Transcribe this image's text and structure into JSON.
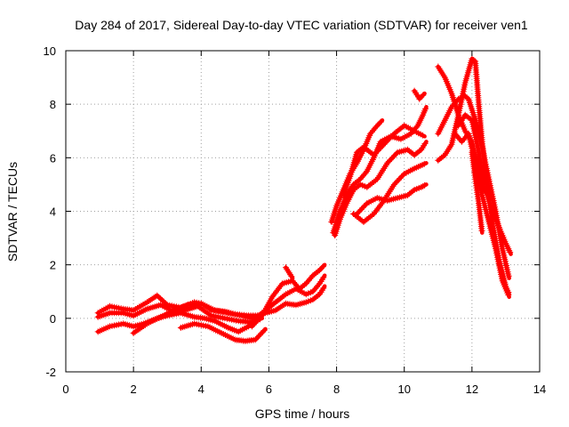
{
  "chart_data": {
    "type": "scatter",
    "title": "Day 284 of 2017, Sidereal Day-to-day VTEC variation (SDTVAR) for receiver ven1",
    "xlabel": "GPS time / hours",
    "ylabel": "SDTVAR / TECUs",
    "xlim": [
      0,
      14
    ],
    "ylim": [
      -2,
      10
    ],
    "xticks": [
      0,
      2,
      4,
      6,
      8,
      10,
      12,
      14
    ],
    "yticks": [
      -2,
      0,
      2,
      4,
      6,
      8,
      10
    ],
    "grid": true,
    "marker": "plus",
    "color": "#ff0000",
    "series": [
      {
        "x": [
          0.95,
          1.3,
          1.7,
          2.0,
          2.4,
          2.7,
          3.0,
          3.4,
          3.8,
          4.0,
          4.4,
          4.8,
          5.2,
          5.5,
          5.8
        ],
        "y": [
          0.2,
          0.45,
          0.35,
          0.3,
          0.6,
          0.85,
          0.5,
          0.4,
          0.6,
          0.55,
          0.3,
          0.2,
          0.1,
          0.0,
          0.1
        ]
      },
      {
        "x": [
          0.95,
          1.3,
          1.7,
          2.0,
          2.4,
          2.8,
          3.1,
          3.5,
          3.9,
          4.3,
          4.7,
          5.1,
          5.5,
          5.8
        ],
        "y": [
          0.05,
          0.2,
          0.2,
          0.1,
          0.35,
          0.5,
          0.3,
          0.3,
          0.45,
          0.1,
          0.0,
          -0.1,
          -0.15,
          0.0
        ]
      },
      {
        "x": [
          0.95,
          1.3,
          1.7,
          2.0,
          2.3,
          2.7,
          3.0,
          3.4,
          3.8,
          4.1,
          4.4,
          4.8,
          5.1,
          5.4,
          5.6
        ],
        "y": [
          -0.5,
          -0.3,
          -0.2,
          -0.3,
          -0.2,
          0.0,
          0.1,
          0.2,
          0.05,
          0.0,
          -0.1,
          -0.35,
          -0.5,
          -0.3,
          -0.1
        ]
      },
      {
        "x": [
          2.0,
          2.4,
          2.8,
          3.2,
          3.6,
          4.0,
          4.3,
          4.7,
          5.0,
          5.4,
          5.8
        ],
        "y": [
          -0.55,
          -0.2,
          0.05,
          0.3,
          0.5,
          0.55,
          0.3,
          0.25,
          0.15,
          0.1,
          0.1
        ]
      },
      {
        "x": [
          3.4,
          3.8,
          4.2,
          4.6,
          5.0,
          5.3,
          5.6,
          5.9
        ],
        "y": [
          -0.35,
          -0.2,
          -0.3,
          -0.55,
          -0.8,
          -0.85,
          -0.8,
          -0.4
        ]
      },
      {
        "x": [
          5.5,
          5.8,
          6.1,
          6.4,
          6.7,
          6.9,
          7.1,
          7.3,
          7.5,
          7.65
        ],
        "y": [
          -0.3,
          0.1,
          0.8,
          1.3,
          1.4,
          1.1,
          1.3,
          1.6,
          1.8,
          2.0
        ]
      },
      {
        "x": [
          5.6,
          5.9,
          6.2,
          6.5,
          6.8,
          7.1,
          7.3,
          7.5,
          7.65
        ],
        "y": [
          0.0,
          0.3,
          0.6,
          0.9,
          1.1,
          0.9,
          1.0,
          1.3,
          1.6
        ]
      },
      {
        "x": [
          5.9,
          6.2,
          6.5,
          6.8,
          7.1,
          7.3,
          7.5,
          7.65
        ],
        "y": [
          0.2,
          0.3,
          0.55,
          0.5,
          0.6,
          0.7,
          0.9,
          1.2
        ]
      },
      {
        "x": [
          6.5,
          6.6,
          6.7
        ],
        "y": [
          1.9,
          1.7,
          1.5
        ]
      },
      {
        "x": [
          7.85,
          8.0,
          8.2,
          8.4,
          8.6,
          8.8,
          9.0,
          9.2,
          9.35
        ],
        "y": [
          3.6,
          4.2,
          4.8,
          5.4,
          5.8,
          6.3,
          6.9,
          7.2,
          7.4
        ]
      },
      {
        "x": [
          7.9,
          8.1,
          8.3,
          8.5,
          8.7,
          8.9,
          9.1,
          9.3,
          9.6,
          9.9,
          10.2,
          10.4,
          10.55,
          10.65
        ],
        "y": [
          3.2,
          4.0,
          4.6,
          5.0,
          5.2,
          5.5,
          6.0,
          6.6,
          6.8,
          6.7,
          6.9,
          7.2,
          7.6,
          7.9
        ]
      },
      {
        "x": [
          7.95,
          8.1,
          8.3,
          8.5,
          8.7,
          8.9,
          9.2,
          9.5,
          9.8,
          10.1,
          10.3,
          10.5,
          10.65
        ],
        "y": [
          3.1,
          3.7,
          4.3,
          4.8,
          5.0,
          4.9,
          5.2,
          5.8,
          6.2,
          6.3,
          6.1,
          6.3,
          6.6
        ]
      },
      {
        "x": [
          8.2,
          8.4,
          8.6,
          8.8,
          9.1,
          9.4,
          9.7,
          10.0,
          10.3,
          10.6
        ],
        "y": [
          4.6,
          5.3,
          6.2,
          6.4,
          6.1,
          6.5,
          6.9,
          7.2,
          7.0,
          6.8
        ]
      },
      {
        "x": [
          8.6,
          8.9,
          9.2,
          9.5,
          9.8,
          10.1,
          10.3,
          10.5,
          10.65
        ],
        "y": [
          3.9,
          4.3,
          4.5,
          4.4,
          4.5,
          4.6,
          4.8,
          4.9,
          5.0
        ]
      },
      {
        "x": [
          8.5,
          8.8,
          9.1,
          9.4,
          9.7,
          10.0,
          10.3,
          10.65
        ],
        "y": [
          3.9,
          3.6,
          3.9,
          4.4,
          5.0,
          5.4,
          5.6,
          5.8
        ]
      },
      {
        "x": [
          10.3,
          10.45,
          10.6
        ],
        "y": [
          8.5,
          8.2,
          8.4
        ]
      },
      {
        "x": [
          11.0,
          11.2,
          11.4,
          11.6,
          11.8,
          12.0,
          12.15,
          12.3,
          12.45,
          12.6,
          12.8,
          13.0,
          13.15
        ],
        "y": [
          9.4,
          9.0,
          8.4,
          7.6,
          7.0,
          6.6,
          5.8,
          5.0,
          4.6,
          4.0,
          3.4,
          2.8,
          2.4
        ]
      },
      {
        "x": [
          11.0,
          11.2,
          11.4,
          11.6,
          11.8,
          11.9,
          12.1,
          12.3,
          12.5,
          12.7,
          12.9,
          13.1
        ],
        "y": [
          6.9,
          7.4,
          7.9,
          8.2,
          8.3,
          8.2,
          7.4,
          6.4,
          5.2,
          4.0,
          2.6,
          1.5
        ]
      },
      {
        "x": [
          11.0,
          11.2,
          11.4,
          11.6,
          11.8,
          12.0,
          12.1,
          12.2,
          12.3,
          12.4,
          12.6,
          12.8,
          13.0,
          13.1
        ],
        "y": [
          5.9,
          6.1,
          6.5,
          7.6,
          8.8,
          9.7,
          9.6,
          8.0,
          6.6,
          5.4,
          3.6,
          2.2,
          1.2,
          0.9
        ]
      },
      {
        "x": [
          11.5,
          11.7,
          11.9,
          12.1,
          12.3,
          12.5,
          12.7,
          12.9,
          13.1
        ],
        "y": [
          6.9,
          6.6,
          6.9,
          5.8,
          4.6,
          3.6,
          2.6,
          1.4,
          0.8
        ]
      },
      {
        "x": [
          11.6,
          11.8,
          12.0,
          12.2,
          12.35
        ],
        "y": [
          7.2,
          7.6,
          7.4,
          6.2,
          5.0
        ]
      },
      {
        "x": [
          12.0,
          12.1,
          12.2,
          12.3
        ],
        "y": [
          6.2,
          5.2,
          4.3,
          3.2
        ]
      }
    ]
  }
}
